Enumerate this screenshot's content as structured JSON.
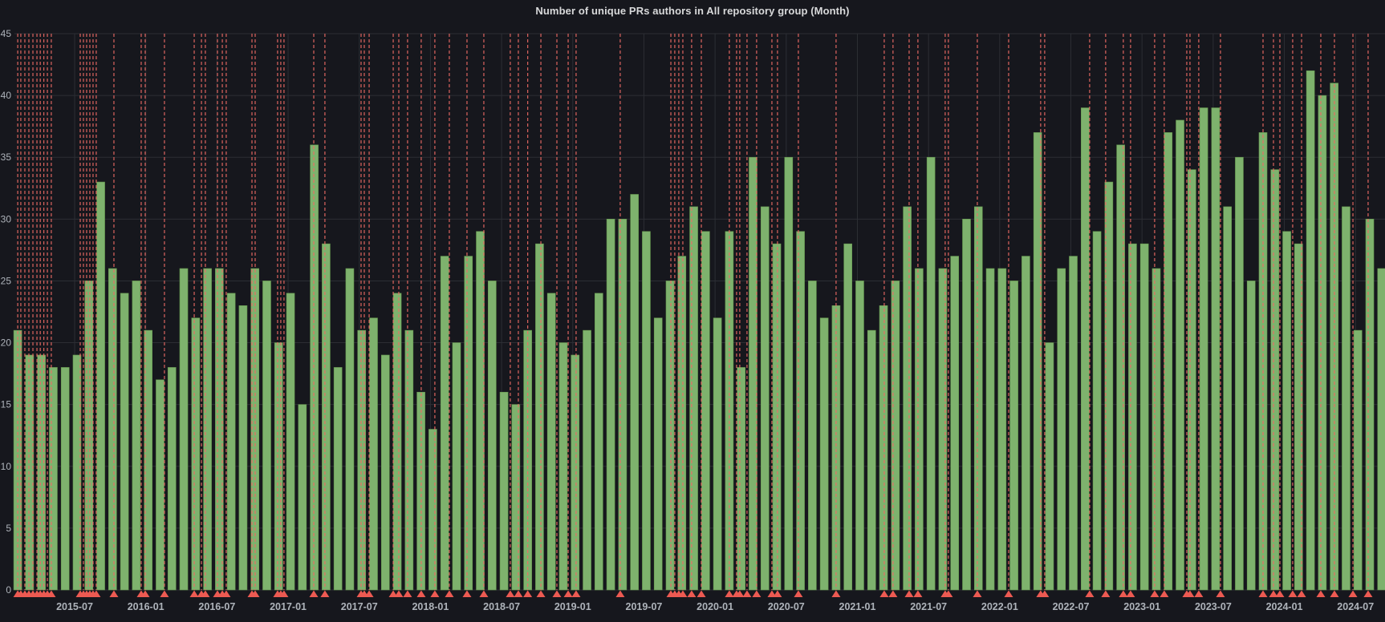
{
  "panel": {
    "title": "Number of unique PRs authors in All repository group (Month)"
  },
  "chart_data": {
    "type": "bar",
    "title": "Number of unique PRs authors in All repository group (Month)",
    "xlabel": "",
    "ylabel": "",
    "ylim": [
      0,
      45
    ],
    "y_ticks": [
      0,
      5,
      10,
      15,
      20,
      25,
      30,
      35,
      40,
      45
    ],
    "grid": true,
    "legend_position": "none",
    "bar_color": "#7eb26d",
    "bar_edge_color": "#67994f",
    "grid_color": "#2c2e34",
    "tick_text_color": "#aeb3ba",
    "background_color": "#16171d",
    "annotation_line_color": "#ee6b65",
    "annotation_marker_color": "#ec5a52",
    "annotation_marker": "triangle-up",
    "categories": [
      "2015-02",
      "2015-03",
      "2015-04",
      "2015-05",
      "2015-06",
      "2015-07",
      "2015-08",
      "2015-09",
      "2015-10",
      "2015-11",
      "2015-12",
      "2016-01",
      "2016-02",
      "2016-03",
      "2016-04",
      "2016-05",
      "2016-06",
      "2016-07",
      "2016-08",
      "2016-09",
      "2016-10",
      "2016-11",
      "2016-12",
      "2017-01",
      "2017-02",
      "2017-03",
      "2017-04",
      "2017-05",
      "2017-06",
      "2017-07",
      "2017-08",
      "2017-09",
      "2017-10",
      "2017-11",
      "2017-12",
      "2018-01",
      "2018-02",
      "2018-03",
      "2018-04",
      "2018-05",
      "2018-06",
      "2018-07",
      "2018-08",
      "2018-09",
      "2018-10",
      "2018-11",
      "2018-12",
      "2019-01",
      "2019-02",
      "2019-03",
      "2019-04",
      "2019-05",
      "2019-06",
      "2019-07",
      "2019-08",
      "2019-09",
      "2019-10",
      "2019-11",
      "2019-12",
      "2020-01",
      "2020-02",
      "2020-03",
      "2020-04",
      "2020-05",
      "2020-06",
      "2020-07",
      "2020-08",
      "2020-09",
      "2020-10",
      "2020-11",
      "2020-12",
      "2021-01",
      "2021-02",
      "2021-03",
      "2021-04",
      "2021-05",
      "2021-06",
      "2021-07",
      "2021-08",
      "2021-09",
      "2021-10",
      "2021-11",
      "2021-12",
      "2022-01",
      "2022-02",
      "2022-03",
      "2022-04",
      "2022-05",
      "2022-06",
      "2022-07",
      "2022-08",
      "2022-09",
      "2022-10",
      "2022-11",
      "2022-12",
      "2023-01",
      "2023-02",
      "2023-03",
      "2023-04",
      "2023-05",
      "2023-06",
      "2023-07",
      "2023-08",
      "2023-09",
      "2023-10",
      "2023-11",
      "2023-12",
      "2024-01",
      "2024-02",
      "2024-03",
      "2024-04",
      "2024-05",
      "2024-06",
      "2024-07",
      "2024-08",
      "2024-09"
    ],
    "values": [
      21,
      19,
      19,
      18,
      18,
      19,
      25,
      33,
      26,
      24,
      25,
      21,
      17,
      18,
      26,
      22,
      26,
      26,
      24,
      23,
      26,
      25,
      20,
      24,
      15,
      36,
      28,
      18,
      26,
      21,
      22,
      19,
      24,
      21,
      16,
      13,
      27,
      20,
      27,
      29,
      25,
      16,
      15,
      21,
      28,
      24,
      20,
      19,
      21,
      24,
      30,
      30,
      32,
      29,
      22,
      25,
      27,
      31,
      29,
      22,
      29,
      18,
      35,
      31,
      28,
      35,
      29,
      25,
      22,
      23,
      28,
      25,
      21,
      23,
      25,
      31,
      26,
      35,
      26,
      27,
      30,
      31,
      26,
      26,
      25,
      27,
      37,
      20,
      26,
      27,
      39,
      29,
      33,
      36,
      28,
      28,
      26,
      37,
      38,
      34,
      39,
      39,
      31,
      35,
      25,
      37,
      34,
      29,
      28,
      42,
      40,
      41,
      31,
      21,
      30,
      26
    ],
    "x_tick_labels": [
      "2015-07",
      "2016-01",
      "2016-07",
      "2017-01",
      "2017-07",
      "2018-01",
      "2018-07",
      "2019-01",
      "2019-07",
      "2020-01",
      "2020-07",
      "2021-01",
      "2021-07",
      "2022-01",
      "2022-07",
      "2023-01",
      "2023-07",
      "2024-01",
      "2024-07"
    ],
    "annotation_month_positions": [
      0.0,
      0.26,
      0.6,
      0.94,
      1.28,
      1.62,
      1.9,
      2.2,
      2.5,
      2.83,
      5.27,
      5.54,
      5.81,
      6.08,
      6.35,
      6.62,
      8.11,
      10.41,
      10.75,
      12.37,
      14.88,
      15.49,
      15.82,
      16.84,
      17.25,
      17.58,
      19.75,
      20.02,
      21.91,
      22.18,
      22.45,
      24.96,
      25.9,
      28.95,
      29.22,
      29.63,
      31.66,
      32.13,
      32.87,
      34.02,
      35.17,
      36.39,
      37.88,
      39.3,
      41.53,
      42.21,
      43.0,
      44.11,
      45.46,
      46.41,
      47.08,
      50.8,
      55.07,
      55.4,
      55.74,
      56.08,
      56.82,
      57.64,
      60.0,
      60.61,
      60.88,
      61.49,
      62.3,
      63.59,
      64.06,
      65.82,
      69.0,
      73.06,
      73.8,
      75.16,
      75.9,
      78.2,
      78.47,
      80.91,
      83.55,
      86.25,
      86.59,
      90.38,
      91.73,
      93.22,
      93.83,
      95.86,
      96.67,
      98.57,
      98.84,
      99.58,
      101.41,
      105.0,
      105.88,
      106.42,
      107.5,
      108.25,
      109.87,
      111.02,
      112.58,
      113.86
    ]
  }
}
